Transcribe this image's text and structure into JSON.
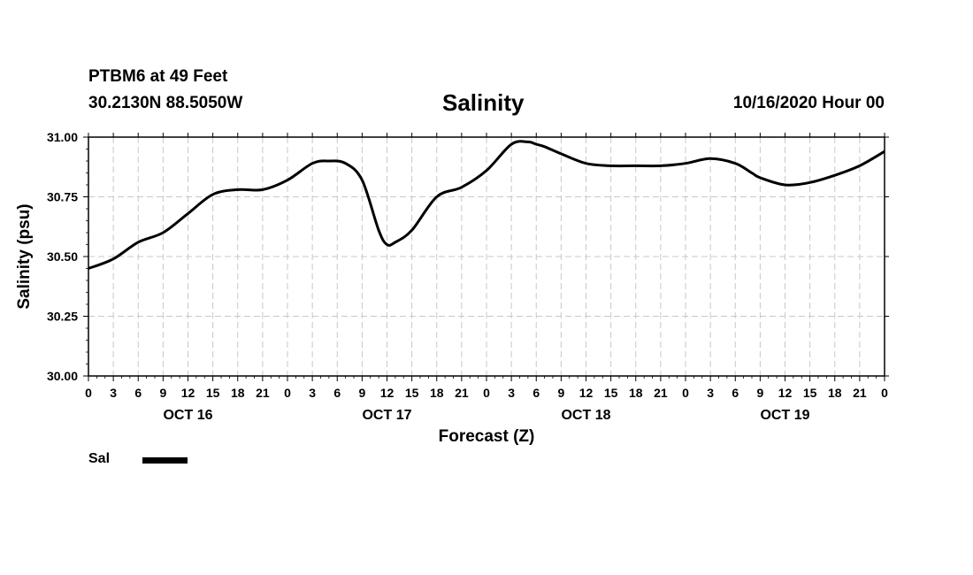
{
  "header": {
    "station": "PTBM6 at 49 Feet",
    "coords": "30.2130N 88.5050W",
    "title": "Salinity",
    "runtime": "10/16/2020 Hour 00"
  },
  "legend": {
    "label": "Sal",
    "color": "#000000"
  },
  "chart_data": {
    "type": "line",
    "title": "Salinity",
    "xlabel": "Forecast (Z)",
    "ylabel": "Salinity (psu)",
    "ylim": [
      30.0,
      31.0
    ],
    "xlim": [
      0,
      96
    ],
    "grid": true,
    "legend_position": "bottom-left",
    "y_ticks": [
      30.0,
      30.25,
      30.5,
      30.75,
      31.0
    ],
    "y_tick_labels": [
      "30.00",
      "30.25",
      "30.50",
      "30.75",
      "31.00"
    ],
    "x_tick_hours": [
      0,
      3,
      6,
      9,
      12,
      15,
      18,
      21,
      24,
      27,
      30,
      33,
      36,
      39,
      42,
      45,
      48,
      51,
      54,
      57,
      60,
      63,
      66,
      69,
      72,
      75,
      78,
      81,
      84,
      87,
      90,
      93,
      96
    ],
    "x_tick_labels": [
      "0",
      "3",
      "6",
      "9",
      "12",
      "15",
      "18",
      "21",
      "0",
      "3",
      "6",
      "9",
      "12",
      "15",
      "18",
      "21",
      "0",
      "3",
      "6",
      "9",
      "12",
      "15",
      "18",
      "21",
      "0",
      "3",
      "6",
      "9",
      "12",
      "15",
      "18",
      "21",
      "0"
    ],
    "day_labels": [
      {
        "hour": 12,
        "label": "OCT 16"
      },
      {
        "hour": 36,
        "label": "OCT 17"
      },
      {
        "hour": 60,
        "label": "OCT 18"
      },
      {
        "hour": 84,
        "label": "OCT 19"
      }
    ],
    "series": [
      {
        "name": "Sal",
        "x": [
          0,
          3,
          6,
          9,
          12,
          15,
          18,
          21,
          24,
          27,
          29,
          31,
          33,
          35,
          36,
          37,
          39,
          42,
          45,
          48,
          51,
          53,
          54,
          55,
          57,
          60,
          63,
          66,
          69,
          72,
          75,
          78,
          80,
          81,
          84,
          87,
          90,
          93,
          96
        ],
        "values": [
          30.45,
          30.49,
          30.56,
          30.6,
          30.68,
          30.76,
          30.78,
          30.78,
          30.82,
          30.89,
          30.9,
          30.89,
          30.82,
          30.61,
          30.55,
          30.56,
          30.61,
          30.75,
          30.79,
          30.86,
          30.97,
          30.98,
          30.97,
          30.96,
          30.93,
          30.89,
          30.88,
          30.88,
          30.88,
          30.89,
          30.91,
          30.89,
          30.85,
          30.83,
          30.8,
          30.81,
          30.84,
          30.88,
          30.94
        ]
      }
    ]
  }
}
